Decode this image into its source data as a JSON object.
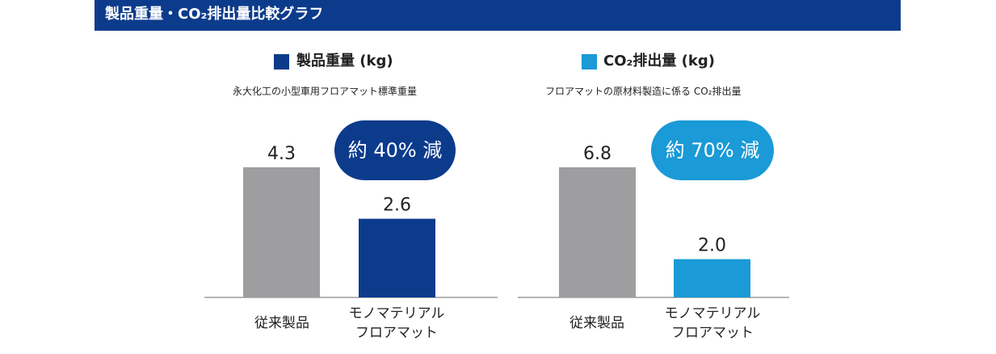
{
  "page_title": "製品重量・CO₂排出量比較グラフ",
  "colors": {
    "title_bar": "#0d3b8c",
    "conventional_bar": "#9e9ea0",
    "weight_accent": "#0d3b8c",
    "co2_accent": "#1a9ad6",
    "baseline": "#6b6b6b"
  },
  "chart_data": [
    {
      "type": "bar",
      "legend": "製品重量 (kg)",
      "subtitle": "永大化工の小型車用フロアマット標準重量",
      "reduction_label": "約 40% 減",
      "accent_color": "#0d3b8c",
      "categories": [
        [
          "従来製品"
        ],
        [
          "モノマテリアル",
          "フロアマット"
        ]
      ],
      "values": [
        4.3,
        2.6
      ],
      "value_labels": [
        "4.3",
        "2.6"
      ],
      "ylim": [
        0,
        4.3
      ]
    },
    {
      "type": "bar",
      "legend": "CO₂排出量 (kg)",
      "subtitle": "フロアマットの原材料製造に係る CO₂排出量",
      "reduction_label": "約 70% 減",
      "accent_color": "#1a9ad6",
      "categories": [
        [
          "従来製品"
        ],
        [
          "モノマテリアル",
          "フロアマット"
        ]
      ],
      "values": [
        6.8,
        2.0
      ],
      "value_labels": [
        "6.8",
        "2.0"
      ],
      "ylim": [
        0,
        6.8
      ]
    }
  ]
}
